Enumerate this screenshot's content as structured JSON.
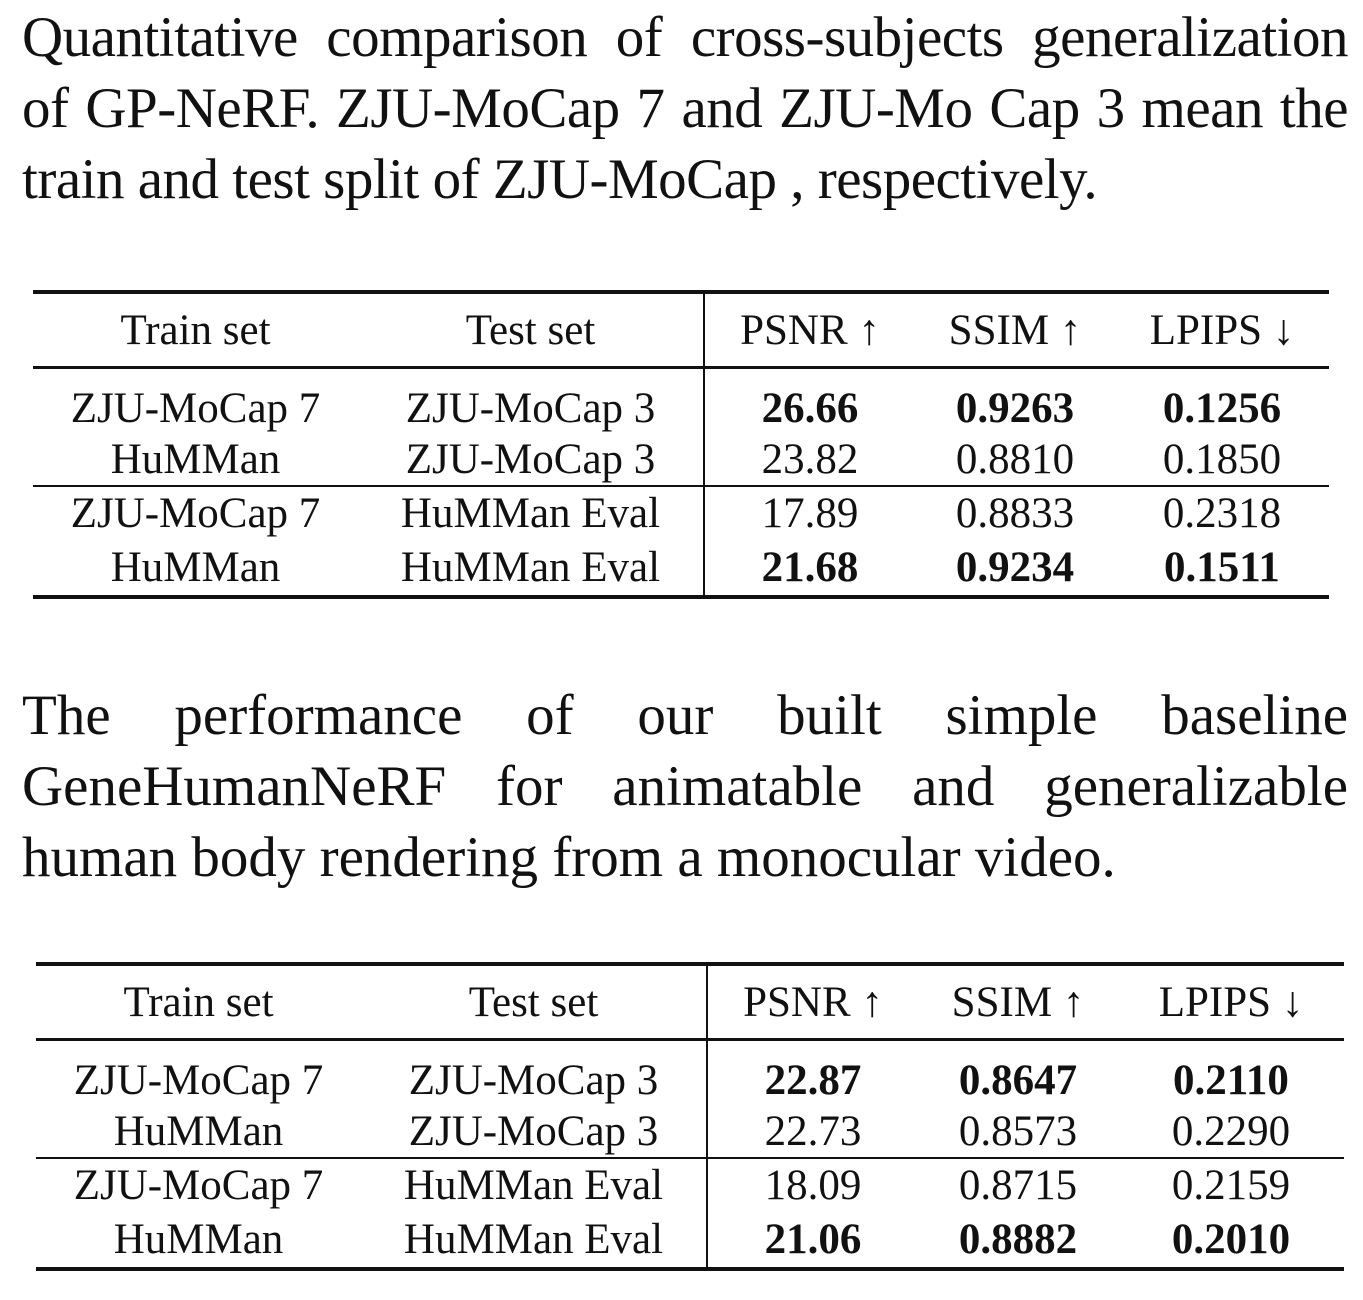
{
  "caption1": "Quantitative comparison of cross-subjects generalization of GP-NeRF. ZJU-MoCap 7 and ZJU-Mo Cap 3 mean the train and test split of ZJU-MoCap , respectively.",
  "caption2": "The performance of our built simple baseline GeneHumanNeRF for animatable and generalizable human body rendering from a monocular video.",
  "columns": [
    "Train set",
    "Test set",
    "PSNR ↑",
    "SSIM ↑",
    "LPIPS ↓"
  ],
  "table1": {
    "rows": [
      {
        "train": "ZJU-MoCap 7",
        "test": "ZJU-MoCap 3",
        "psnr": "26.66",
        "ssim": "0.9263",
        "lpips": "0.1256",
        "bold": true
      },
      {
        "train": "HuMMan",
        "test": "ZJU-MoCap 3",
        "psnr": "23.82",
        "ssim": "0.8810",
        "lpips": "0.1850",
        "bold": false
      },
      {
        "train": "ZJU-MoCap 7",
        "test": "HuMMan Eval",
        "psnr": "17.89",
        "ssim": "0.8833",
        "lpips": "0.2318",
        "bold": false
      },
      {
        "train": "HuMMan",
        "test": "HuMMan Eval",
        "psnr": "21.68",
        "ssim": "0.9234",
        "lpips": "0.1511",
        "bold": true
      }
    ]
  },
  "table2": {
    "rows": [
      {
        "train": "ZJU-MoCap 7",
        "test": "ZJU-MoCap 3",
        "psnr": "22.87",
        "ssim": "0.8647",
        "lpips": "0.2110",
        "bold": true
      },
      {
        "train": "HuMMan",
        "test": "ZJU-MoCap 3",
        "psnr": "22.73",
        "ssim": "0.8573",
        "lpips": "0.2290",
        "bold": false
      },
      {
        "train": "ZJU-MoCap 7",
        "test": "HuMMan Eval",
        "psnr": "18.09",
        "ssim": "0.8715",
        "lpips": "0.2159",
        "bold": false
      },
      {
        "train": "HuMMan",
        "test": "HuMMan Eval",
        "psnr": "21.06",
        "ssim": "0.8882",
        "lpips": "0.2010",
        "bold": true
      }
    ]
  }
}
